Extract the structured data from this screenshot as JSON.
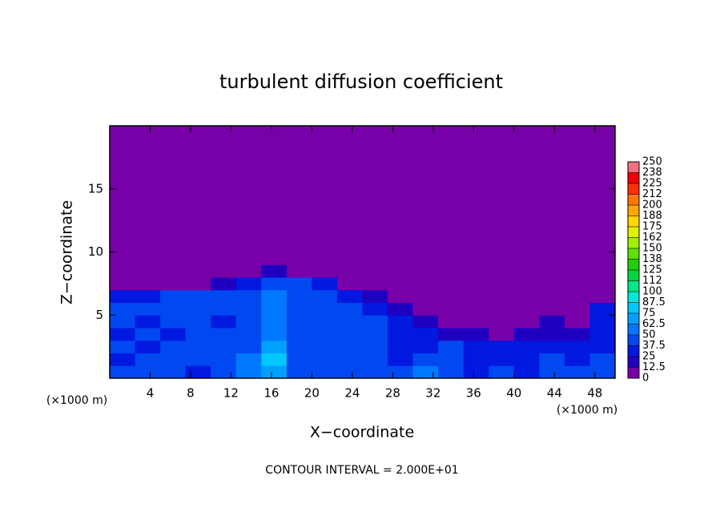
{
  "chart_data": {
    "type": "contour",
    "title": "turbulent diffusion coefficient",
    "x_label": "X−coordinate",
    "y_label": "Z−coordinate",
    "x_unit_labels": [
      "(×1000 m)",
      "(×1000 m)"
    ],
    "footer": "CONTOUR INTERVAL = 2.000E+01",
    "xlim": [
      0,
      50
    ],
    "ylim": [
      0,
      20
    ],
    "xticks": [
      4,
      8,
      12,
      16,
      20,
      24,
      28,
      32,
      36,
      40,
      44,
      48
    ],
    "yticks": [
      5,
      10,
      15
    ],
    "xbins": [
      0,
      2.5,
      5,
      7.5,
      10,
      12.5,
      15,
      17.5,
      20,
      22.5,
      25,
      27.5,
      30,
      32.5,
      35,
      37.5,
      40,
      42.5,
      45,
      47.5,
      50
    ],
    "ybins": [
      0,
      1,
      2,
      3,
      4,
      5,
      6,
      7,
      8,
      9,
      20
    ],
    "z": [
      [
        40,
        45,
        40,
        35,
        45,
        50,
        70,
        45,
        40,
        45,
        40,
        40,
        55,
        40,
        30,
        40,
        35,
        45,
        40,
        45
      ],
      [
        35,
        40,
        40,
        40,
        45,
        50,
        75,
        45,
        40,
        40,
        40,
        35,
        40,
        45,
        35,
        30,
        35,
        40,
        35,
        40
      ],
      [
        40,
        35,
        40,
        45,
        40,
        45,
        70,
        45,
        40,
        40,
        40,
        35,
        35,
        40,
        30,
        25,
        30,
        35,
        30,
        35
      ],
      [
        35,
        40,
        35,
        40,
        40,
        40,
        60,
        40,
        40,
        40,
        40,
        35,
        30,
        20,
        15,
        10,
        15,
        20,
        15,
        25
      ],
      [
        40,
        35,
        40,
        40,
        35,
        40,
        60,
        45,
        40,
        40,
        40,
        30,
        15,
        10,
        5,
        5,
        10,
        15,
        10,
        30
      ],
      [
        40,
        40,
        40,
        40,
        40,
        40,
        55,
        45,
        40,
        40,
        35,
        20,
        5,
        0,
        0,
        0,
        0,
        5,
        5,
        35
      ],
      [
        25,
        35,
        40,
        40,
        40,
        40,
        50,
        45,
        40,
        35,
        20,
        5,
        0,
        0,
        0,
        0,
        0,
        0,
        0,
        5
      ],
      [
        0,
        0,
        5,
        10,
        20,
        30,
        45,
        40,
        30,
        10,
        0,
        0,
        0,
        0,
        0,
        0,
        0,
        0,
        0,
        0
      ],
      [
        0,
        0,
        0,
        0,
        0,
        5,
        15,
        10,
        5,
        0,
        0,
        0,
        0,
        0,
        0,
        0,
        0,
        0,
        0,
        0
      ],
      [
        0,
        0,
        0,
        0,
        0,
        0,
        0,
        0,
        0,
        0,
        0,
        0,
        0,
        0,
        0,
        0,
        0,
        0,
        0,
        0
      ]
    ],
    "colorbar_ticks": [
      0,
      12.5,
      25,
      37.5,
      50,
      62.5,
      75,
      87.5,
      100,
      {
        "value": 112.5,
        "label": "112"
      },
      125,
      {
        "value": 137.5,
        "label": "138"
      },
      150,
      {
        "value": 162.5,
        "label": "162"
      },
      175,
      {
        "value": 187.5,
        "label": "188"
      },
      200,
      {
        "value": 212.5,
        "label": "212"
      },
      225,
      {
        "value": 237.5,
        "label": "238"
      },
      250
    ],
    "colors": [
      "#7800a8",
      "#2000c0",
      "#0018e0",
      "#0048f0",
      "#0078ff",
      "#00a0ff",
      "#00c8ff",
      "#00e8d8",
      "#00e888",
      "#00d840",
      "#20d000",
      "#60e000",
      "#a0f000",
      "#e0f000",
      "#ffd800",
      "#ffa800",
      "#ff7800",
      "#ff3000",
      "#f00000",
      "#f07080"
    ]
  }
}
